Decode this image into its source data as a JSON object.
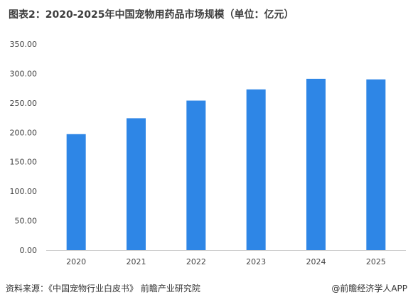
{
  "header": {
    "title": "图表2：2020-2025年中国宠物用药品市场规模（单位：亿元）"
  },
  "footer": {
    "source": "资料来源：《中国宠物行业白皮书》 前瞻产业研究院",
    "brand": "@前瞻经济学人APP"
  },
  "chart_data": {
    "type": "bar",
    "categories": [
      "2020",
      "2021",
      "2022",
      "2023",
      "2024",
      "2025"
    ],
    "series": [
      {
        "values": [
          197,
          224,
          254,
          273,
          291,
          290
        ]
      }
    ],
    "title": "图表2：2020-2025年中国宠物用药品市场规模（单位：亿元）",
    "xlabel": "",
    "ylabel": "",
    "ylim": [
      0,
      350
    ],
    "yticks": [
      "0.00",
      "50.00",
      "100.00",
      "150.00",
      "200.00",
      "250.00",
      "300.00",
      "350.00"
    ],
    "grid": false,
    "legend": "none",
    "colors": {
      "bar": "#2e86e6",
      "axis": "#cfcfcf"
    }
  }
}
